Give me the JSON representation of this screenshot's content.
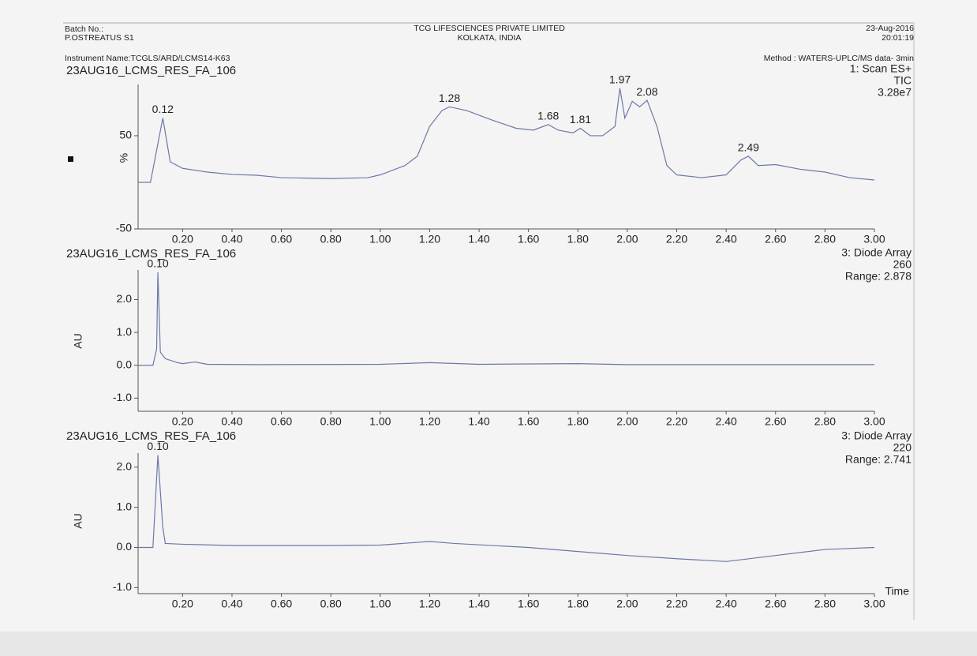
{
  "header": {
    "batch": "Batch No.:",
    "sample": "P.OSTREATUS S1",
    "company": "TCG LIFESCIENCES PRIVATE LIMITED",
    "location": "KOLKATA, INDIA",
    "date": "23-Aug-2016",
    "time": "20:01:19",
    "instrument": "Instrument Name:TCGLS/ARD/LCMS14-K63",
    "method": "Method : WATERS-UPLC/MS data- 3min"
  },
  "chart_data": [
    {
      "type": "line",
      "title": "23AUG16_LCMS_RES_FA_106",
      "info": [
        "1: Scan ES+",
        "TIC",
        "3.28e7"
      ],
      "ylabel": "%",
      "x": [
        0.02,
        0.07,
        0.12,
        0.15,
        0.2,
        0.3,
        0.4,
        0.5,
        0.6,
        0.8,
        0.95,
        1.0,
        1.1,
        1.15,
        1.2,
        1.25,
        1.28,
        1.35,
        1.45,
        1.55,
        1.62,
        1.68,
        1.72,
        1.78,
        1.81,
        1.85,
        1.9,
        1.95,
        1.97,
        1.99,
        2.02,
        2.05,
        2.08,
        2.12,
        2.16,
        2.2,
        2.3,
        2.4,
        2.46,
        2.49,
        2.53,
        2.6,
        2.7,
        2.8,
        2.9,
        3.0
      ],
      "series": [
        {
          "color": "#6b78a6",
          "values": [
            0,
            0,
            69,
            22,
            15,
            11,
            8.5,
            7.6,
            5,
            4,
            5,
            8,
            18,
            28,
            60,
            77,
            81,
            77,
            67,
            58,
            56,
            62,
            56,
            53,
            58,
            50,
            50,
            60,
            101,
            69,
            87,
            81,
            88,
            60,
            18,
            8,
            5,
            8,
            24,
            28,
            18,
            19,
            14,
            11,
            5,
            2.5
          ]
        }
      ],
      "annotations": [
        {
          "x": 0.12,
          "label": "0.12"
        },
        {
          "x": 1.28,
          "label": "1.28"
        },
        {
          "x": 1.68,
          "label": "1.68"
        },
        {
          "x": 1.81,
          "label": "1.81"
        },
        {
          "x": 1.97,
          "label": "1.97"
        },
        {
          "x": 2.08,
          "label": "2.08"
        },
        {
          "x": 2.49,
          "label": "2.49"
        }
      ],
      "xlim": [
        0.02,
        3.0
      ],
      "ylim": [
        -50,
        105
      ],
      "xticks": [
        {
          "value": 0.2,
          "label": "0.20"
        },
        {
          "value": 0.4,
          "label": "0.40"
        },
        {
          "value": 0.6,
          "label": "0.60"
        },
        {
          "value": 0.8,
          "label": "0.80"
        },
        {
          "value": 1.0,
          "label": "1.00"
        },
        {
          "value": 1.2,
          "label": "1.20"
        },
        {
          "value": 1.4,
          "label": "1.40"
        },
        {
          "value": 1.6,
          "label": "1.60"
        },
        {
          "value": 1.8,
          "label": "1.80"
        },
        {
          "value": 2.0,
          "label": "2.00"
        },
        {
          "value": 2.2,
          "label": "2.20"
        },
        {
          "value": 2.4,
          "label": "2.40"
        },
        {
          "value": 2.6,
          "label": "2.60"
        },
        {
          "value": 2.8,
          "label": "2.80"
        },
        {
          "value": 3.0,
          "label": "3.00"
        }
      ],
      "yticks": [
        50,
        -50
      ]
    },
    {
      "type": "line",
      "title": "23AUG16_LCMS_RES_FA_106",
      "info": [
        "3: Diode Array",
        "260",
        "Range: 2.878"
      ],
      "ylabel": "AU",
      "x": [
        0.02,
        0.08,
        0.095,
        0.1,
        0.11,
        0.13,
        0.18,
        0.2,
        0.25,
        0.3,
        0.5,
        1.0,
        1.2,
        1.4,
        1.8,
        2.0,
        3.0
      ],
      "series": [
        {
          "color": "#6b78a6",
          "values": [
            0,
            0,
            0.5,
            2.83,
            0.4,
            0.2,
            0.08,
            0.05,
            0.1,
            0.03,
            0.02,
            0.03,
            0.08,
            0.03,
            0.05,
            0.02,
            0.02
          ]
        }
      ],
      "annotations": [
        {
          "x": 0.1,
          "label": "0.10"
        }
      ],
      "xlim": [
        0.02,
        3.0
      ],
      "ylim": [
        -1.4,
        2.9
      ],
      "xticks": [
        {
          "value": 0.2,
          "label": "0.20"
        },
        {
          "value": 0.4,
          "label": "0.40"
        },
        {
          "value": 0.6,
          "label": "0.60"
        },
        {
          "value": 0.8,
          "label": "0.80"
        },
        {
          "value": 1.0,
          "label": "1.00"
        },
        {
          "value": 1.2,
          "label": "1.20"
        },
        {
          "value": 1.4,
          "label": "1.40"
        },
        {
          "value": 1.6,
          "label": "1.60"
        },
        {
          "value": 1.8,
          "label": "1.80"
        },
        {
          "value": 2.0,
          "label": "2.00"
        },
        {
          "value": 2.2,
          "label": "2.20"
        },
        {
          "value": 2.4,
          "label": "2.40"
        },
        {
          "value": 2.6,
          "label": "2.60"
        },
        {
          "value": 2.8,
          "label": "2.80"
        },
        {
          "value": 3.0,
          "label": "3.00"
        }
      ],
      "yticks": [
        {
          "value": 2.0,
          "label": "2.0"
        },
        {
          "value": 1.0,
          "label": "1.0"
        },
        {
          "value": 0.0,
          "label": "0.0"
        },
        {
          "value": -1.0,
          "label": "-1.0"
        }
      ]
    },
    {
      "type": "line",
      "title": "23AUG16_LCMS_RES_FA_106",
      "info": [
        "3: Diode Array",
        "220",
        "Range: 2.741"
      ],
      "ylabel": "AU",
      "xlabel": "Time",
      "x": [
        0.02,
        0.08,
        0.1,
        0.12,
        0.13,
        0.2,
        0.4,
        0.8,
        1.0,
        1.2,
        1.3,
        1.6,
        2.0,
        2.2,
        2.4,
        2.6,
        2.8,
        3.0
      ],
      "series": [
        {
          "color": "#6b78a6",
          "values": [
            0,
            0,
            2.3,
            0.5,
            0.1,
            0.08,
            0.05,
            0.05,
            0.06,
            0.15,
            0.1,
            0.0,
            -0.2,
            -0.28,
            -0.35,
            -0.2,
            -0.05,
            0.0
          ]
        }
      ],
      "annotations": [
        {
          "x": 0.1,
          "label": "0.10"
        }
      ],
      "xlim": [
        0.02,
        3.0
      ],
      "ylim": [
        -1.15,
        2.35
      ],
      "xticks": [
        {
          "value": 0.2,
          "label": "0.20"
        },
        {
          "value": 0.4,
          "label": "0.40"
        },
        {
          "value": 0.6,
          "label": "0.60"
        },
        {
          "value": 0.8,
          "label": "0.80"
        },
        {
          "value": 1.0,
          "label": "1.00"
        },
        {
          "value": 1.2,
          "label": "1.20"
        },
        {
          "value": 1.4,
          "label": "1.40"
        },
        {
          "value": 1.6,
          "label": "1.60"
        },
        {
          "value": 1.8,
          "label": "1.80"
        },
        {
          "value": 2.0,
          "label": "2.00"
        },
        {
          "value": 2.2,
          "label": "2.20"
        },
        {
          "value": 2.4,
          "label": "2.40"
        },
        {
          "value": 2.6,
          "label": "2.60"
        },
        {
          "value": 2.8,
          "label": "2.80"
        },
        {
          "value": 3.0,
          "label": "3.00"
        }
      ],
      "yticks": [
        {
          "value": 2.0,
          "label": "2.0"
        },
        {
          "value": 1.0,
          "label": "1.0"
        },
        {
          "value": 0.0,
          "label": "0.0"
        },
        {
          "value": -1.0,
          "label": "-1.0"
        }
      ]
    }
  ]
}
